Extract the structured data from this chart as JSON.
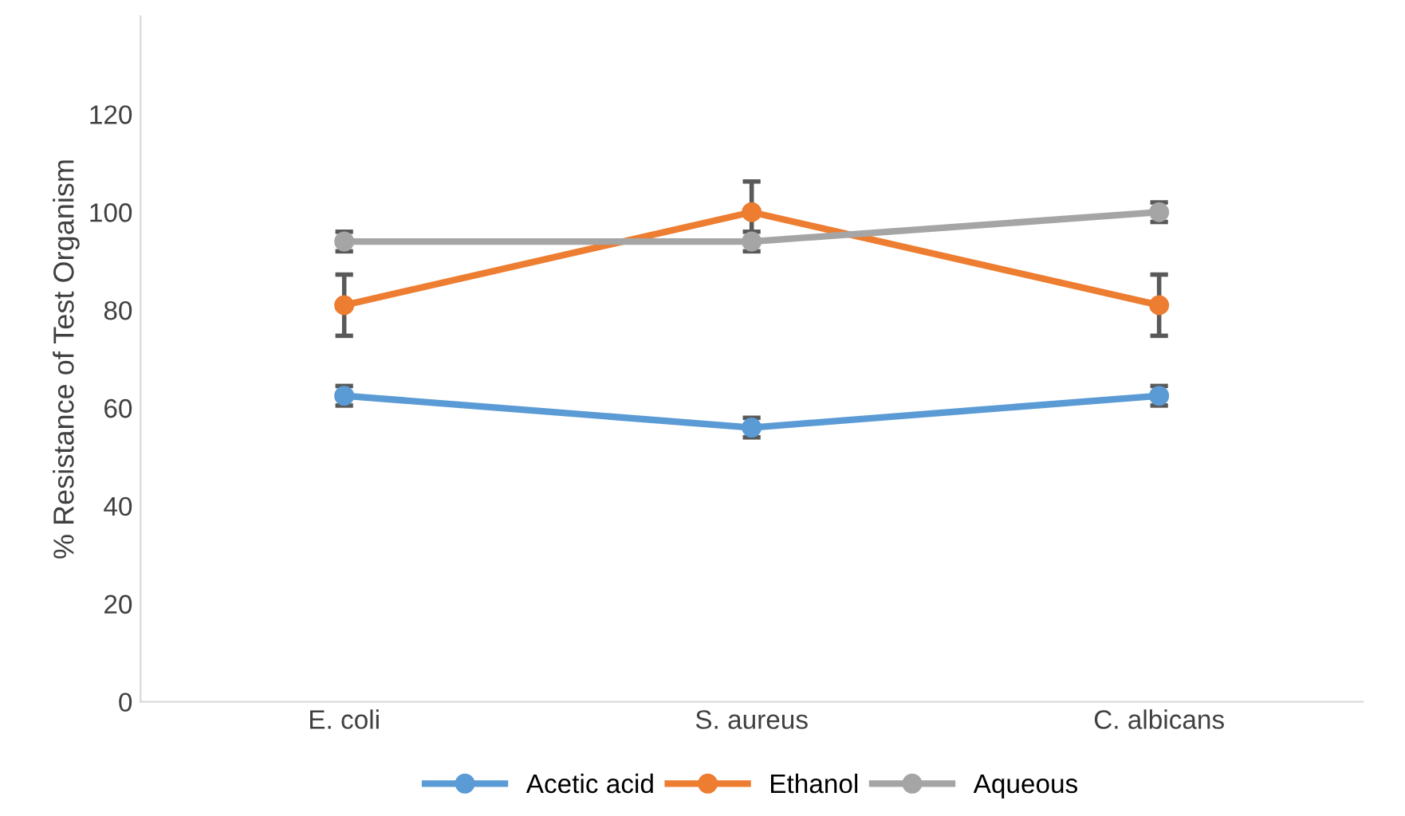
{
  "chart_data": {
    "type": "line",
    "ylabel": "% Resistance of Test Organism",
    "categories": [
      "E. coli",
      "S. aureus",
      "C. albicans"
    ],
    "series": [
      {
        "name": "Acetic acid",
        "color": "#5b9bd5",
        "values": [
          62.5,
          56,
          62.5
        ],
        "errors": [
          2,
          2,
          2
        ]
      },
      {
        "name": "Ethanol",
        "color": "#ed7d31",
        "values": [
          81,
          100,
          81
        ],
        "errors": [
          6.25,
          6.25,
          6.25
        ]
      },
      {
        "name": "Aqueous",
        "color": "#a5a5a5",
        "values": [
          94,
          94,
          100
        ],
        "errors": [
          2,
          2,
          2
        ]
      }
    ],
    "ylim": [
      0,
      140
    ],
    "yticks": [
      0,
      20,
      40,
      60,
      80,
      100,
      120
    ],
    "grid": false,
    "legend": "bottom",
    "marker": "circle",
    "line_style": "solid"
  }
}
